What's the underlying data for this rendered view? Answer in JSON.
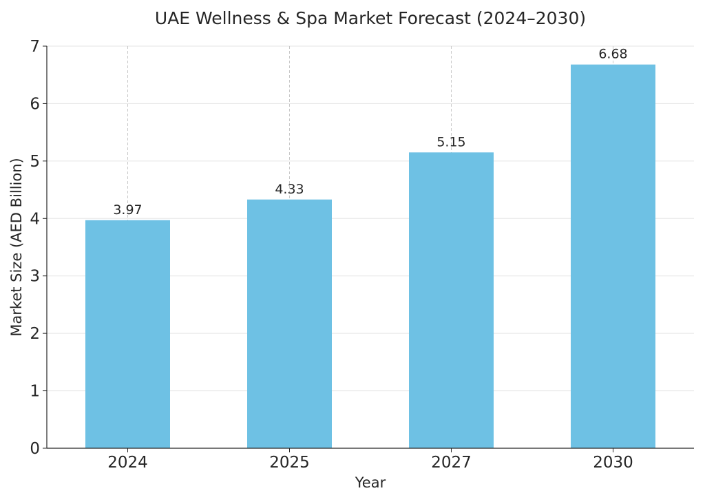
{
  "chart_data": {
    "type": "bar",
    "title": "UAE Wellness & Spa Market Forecast (2024–2030)",
    "xlabel": "Year",
    "ylabel": "Market Size (AED Billion)",
    "categories": [
      "2024",
      "2025",
      "2027",
      "2030"
    ],
    "values": [
      3.97,
      4.33,
      5.15,
      6.68
    ],
    "data_labels": [
      "3.97",
      "4.33",
      "5.15",
      "6.68"
    ],
    "ylim": [
      0,
      7
    ],
    "yticks": [
      "0",
      "1",
      "2",
      "3",
      "4",
      "5",
      "6",
      "7"
    ],
    "grid": true,
    "bar_color": "#6EC1E4",
    "grid_color": "#E5E5E5",
    "vgrid_color": "#C8C8C8",
    "axis_color": "#262626"
  }
}
